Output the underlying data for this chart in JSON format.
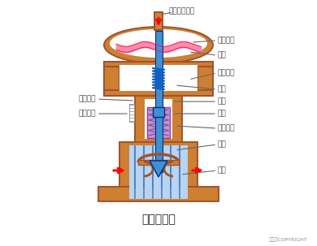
{
  "white": "#FFFFFF",
  "orange": "#CD7F32",
  "orange_edge": "#A0522D",
  "blue_main": "#4090D0",
  "blue_light": "#B8D4F0",
  "blue_stripe": "#5080C0",
  "pink": "#FF80A0",
  "pink_edge": "#FF1060",
  "purple": "#C890D0",
  "purple_edge": "#9040A0",
  "red": "#FF0000",
  "gray": "#666666",
  "black": "#222222",
  "white_fill": "#FFFFFF",
  "title": "气动薄膜阀",
  "copyright": "东方仿COPYRIGHT",
  "lbl_pressure": "压力信号入口",
  "lbl_upper": "膜室上腔",
  "lbl_membrane": "膜片",
  "lbl_lower": "膜室下腔",
  "lbl_spring": "弹簧",
  "lbl_pushrod": "推杆",
  "lbl_stem": "阀杆",
  "lbl_seal": "密封填料",
  "lbl_core": "阀芯",
  "lbl_seat": "阀座",
  "lbl_ptr": "行程指针",
  "lbl_scale": "行程刻度"
}
